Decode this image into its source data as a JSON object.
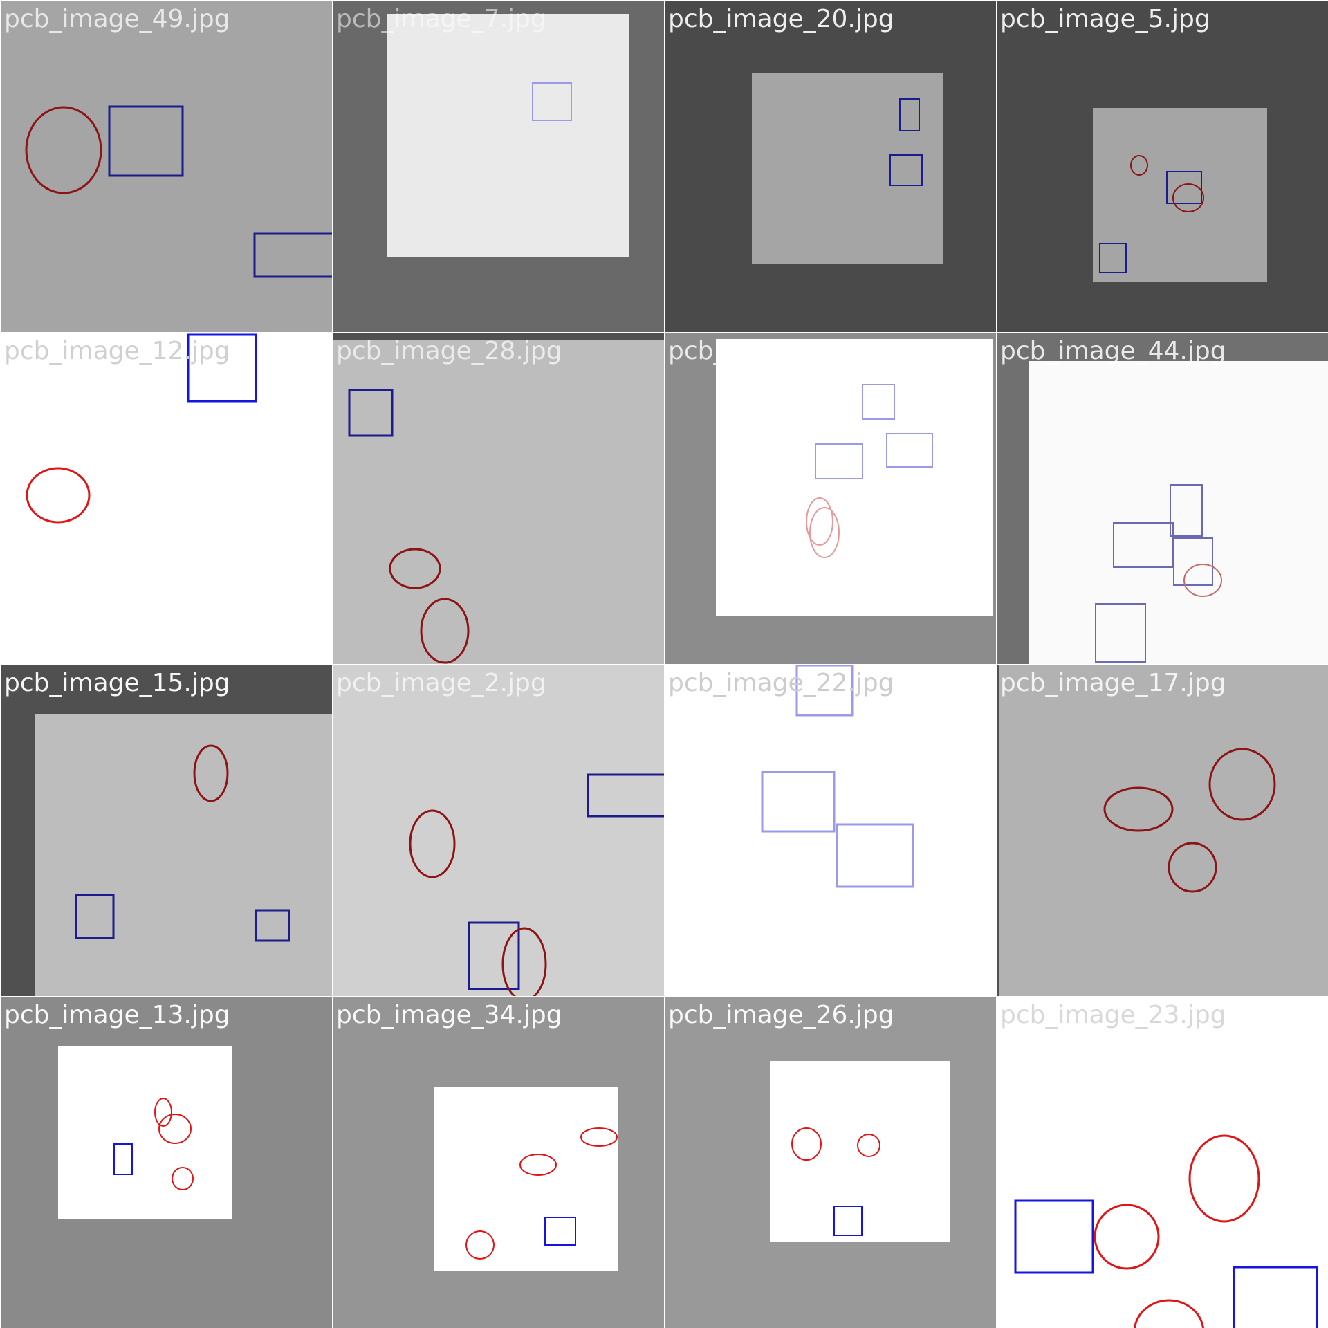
{
  "tiles": [
    {
      "label": "pcb_image_49.jpg",
      "outer_color": "#a5a5a5",
      "caption_color": "#ffffff",
      "caption_opacity": 0.75
    },
    {
      "label": "pcb_image_7.jpg",
      "outer_color": "#696969",
      "inner_color": "#eaeaea",
      "caption_color": "#ffffff",
      "caption_opacity": 0.55
    },
    {
      "label": "pcb_image_20.jpg",
      "outer_color": "#4a4a4a",
      "inner_color": "#a5a5a5",
      "caption_color": "#ffffff",
      "caption_opacity": 0.9
    },
    {
      "label": "pcb_image_5.jpg",
      "outer_color": "#4a4a4a",
      "inner_color": "#a5a5a5",
      "caption_color": "#ffffff",
      "caption_opacity": 0.9
    },
    {
      "label": "pcb_image_12.jpg",
      "outer_color": "#ffffff",
      "caption_color": "#d0d0d0",
      "caption_opacity": 1
    },
    {
      "label": "pcb_image_28.jpg",
      "outer_color": "#bdbdbd",
      "top_band_color": "#505050",
      "caption_color": "#ffffff",
      "caption_opacity": 0.7
    },
    {
      "label": "pcb_image_18.jpg",
      "outer_color": "#8c8c8c",
      "inner_color": "#ffffff",
      "caption_color": "#ffffff",
      "caption_opacity": 0.8
    },
    {
      "label": "pcb_image_44.jpg",
      "outer_color": "#707070",
      "inner_color": "#fafafa",
      "caption_color": "#ffffff",
      "caption_opacity": 0.85
    },
    {
      "label": "pcb_image_15.jpg",
      "outer_color": "#505050",
      "inner_color": "#bdbdbd",
      "caption_color": "#ffffff",
      "caption_opacity": 0.95
    },
    {
      "label": "pcb_image_2.jpg",
      "outer_color": "#d0d0d0",
      "caption_color": "#ffffff",
      "caption_opacity": 0.7
    },
    {
      "label": "pcb_image_22.jpg",
      "outer_color": "#ffffff",
      "caption_color": "#cccccc",
      "caption_opacity": 1
    },
    {
      "label": "pcb_image_17.jpg",
      "outer_color": "#b2b2b2",
      "caption_color": "#ffffff",
      "caption_opacity": 0.85
    },
    {
      "label": "pcb_image_13.jpg",
      "outer_color": "#8a8a8a",
      "inner_color": "#ffffff",
      "caption_color": "#ffffff",
      "caption_opacity": 0.95
    },
    {
      "label": "pcb_image_34.jpg",
      "outer_color": "#959595",
      "inner_color": "#ffffff",
      "caption_color": "#ffffff",
      "caption_opacity": 0.95
    },
    {
      "label": "pcb_image_26.jpg",
      "outer_color": "#999999",
      "inner_color": "#ffffff",
      "caption_color": "#ffffff",
      "caption_opacity": 0.95
    },
    {
      "label": "pcb_image_23.jpg",
      "outer_color": "#ffffff",
      "caption_color": "#d8d8d8",
      "caption_opacity": 1
    }
  ],
  "colors": {
    "grid_background": "#ffffff",
    "rect_dark": "#1c1c8c",
    "circle_dark": "#8c1414",
    "rect_bright": "#1515e0",
    "circle_bright": "#e01515",
    "rect_faint": "#9a9ae6",
    "circle_faint": "#e69a9a"
  }
}
